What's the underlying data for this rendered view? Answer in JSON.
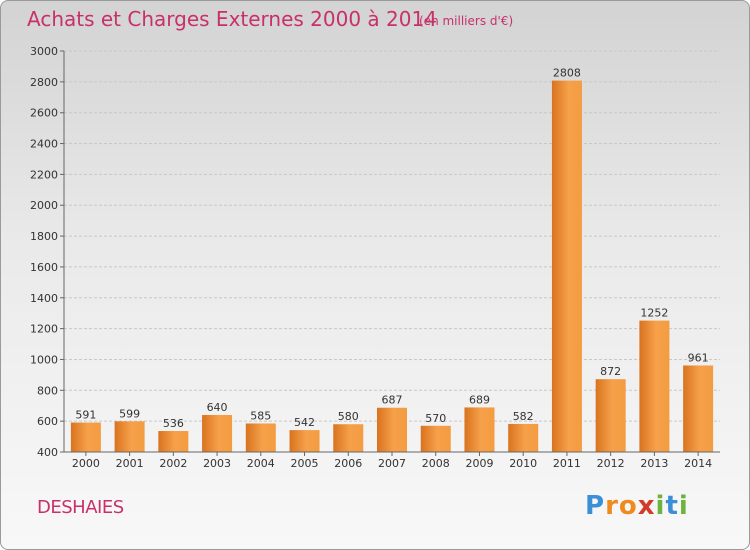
{
  "chart_data": {
    "type": "bar",
    "title": "Achats et Charges Externes 2000 à 2014",
    "unit": "(en milliers d'€)",
    "categories": [
      "2000",
      "2001",
      "2002",
      "2003",
      "2004",
      "2005",
      "2006",
      "2007",
      "2008",
      "2009",
      "2010",
      "2011",
      "2012",
      "2013",
      "2014"
    ],
    "values": [
      591,
      599,
      536,
      640,
      585,
      542,
      580,
      687,
      570,
      689,
      582,
      2808,
      872,
      1252,
      961
    ],
    "ylim": [
      400,
      3000
    ],
    "yticks": [
      400,
      600,
      800,
      1000,
      1200,
      1400,
      1600,
      1800,
      2000,
      2200,
      2400,
      2600,
      2800,
      3000
    ],
    "grid": true,
    "xlabel": "",
    "ylabel": "",
    "bar_color": "#f39c41",
    "bar_color_dark": "#d9731f"
  },
  "commune": "DESHAIES",
  "logo": {
    "letters": [
      "P",
      "r",
      "o",
      "x",
      "i",
      "t",
      "i"
    ],
    "colors": [
      "#3b8fd6",
      "#f08a1c",
      "#f08a1c",
      "#d23b2a",
      "#6db33f",
      "#3b8fd6",
      "#6db33f"
    ]
  }
}
